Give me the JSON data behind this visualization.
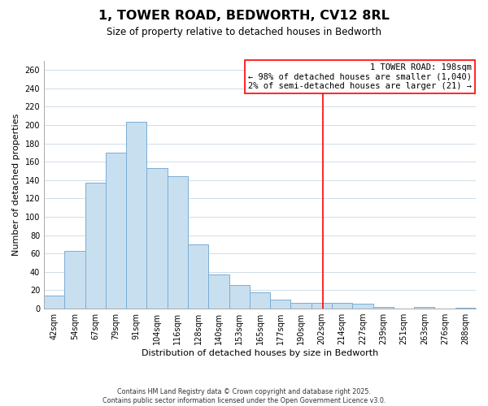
{
  "title": "1, TOWER ROAD, BEDWORTH, CV12 8RL",
  "subtitle": "Size of property relative to detached houses in Bedworth",
  "xlabel": "Distribution of detached houses by size in Bedworth",
  "ylabel": "Number of detached properties",
  "bar_labels": [
    "42sqm",
    "54sqm",
    "67sqm",
    "79sqm",
    "91sqm",
    "104sqm",
    "116sqm",
    "128sqm",
    "140sqm",
    "153sqm",
    "165sqm",
    "177sqm",
    "190sqm",
    "202sqm",
    "214sqm",
    "227sqm",
    "239sqm",
    "251sqm",
    "263sqm",
    "276sqm",
    "288sqm"
  ],
  "bar_heights": [
    14,
    63,
    137,
    170,
    204,
    153,
    144,
    70,
    37,
    26,
    18,
    10,
    6,
    6,
    6,
    5,
    2,
    0,
    2,
    0,
    1
  ],
  "bar_color": "#c8dff0",
  "bar_edge_color": "#7aaed4",
  "grid_color": "#d0dde8",
  "vline_index": 13.08,
  "vline_color": "red",
  "annotation_title": "1 TOWER ROAD: 198sqm",
  "annotation_line1": "← 98% of detached houses are smaller (1,040)",
  "annotation_line2": "2% of semi-detached houses are larger (21) →",
  "footnote1": "Contains HM Land Registry data © Crown copyright and database right 2025.",
  "footnote2": "Contains public sector information licensed under the Open Government Licence v3.0.",
  "ylim": [
    0,
    270
  ],
  "yticks": [
    0,
    20,
    40,
    60,
    80,
    100,
    120,
    140,
    160,
    180,
    200,
    220,
    240,
    260
  ],
  "title_fontsize": 11.5,
  "subtitle_fontsize": 8.5,
  "axis_label_fontsize": 8,
  "tick_fontsize": 7,
  "annotation_fontsize": 7.5,
  "footnote_fontsize": 5.8
}
